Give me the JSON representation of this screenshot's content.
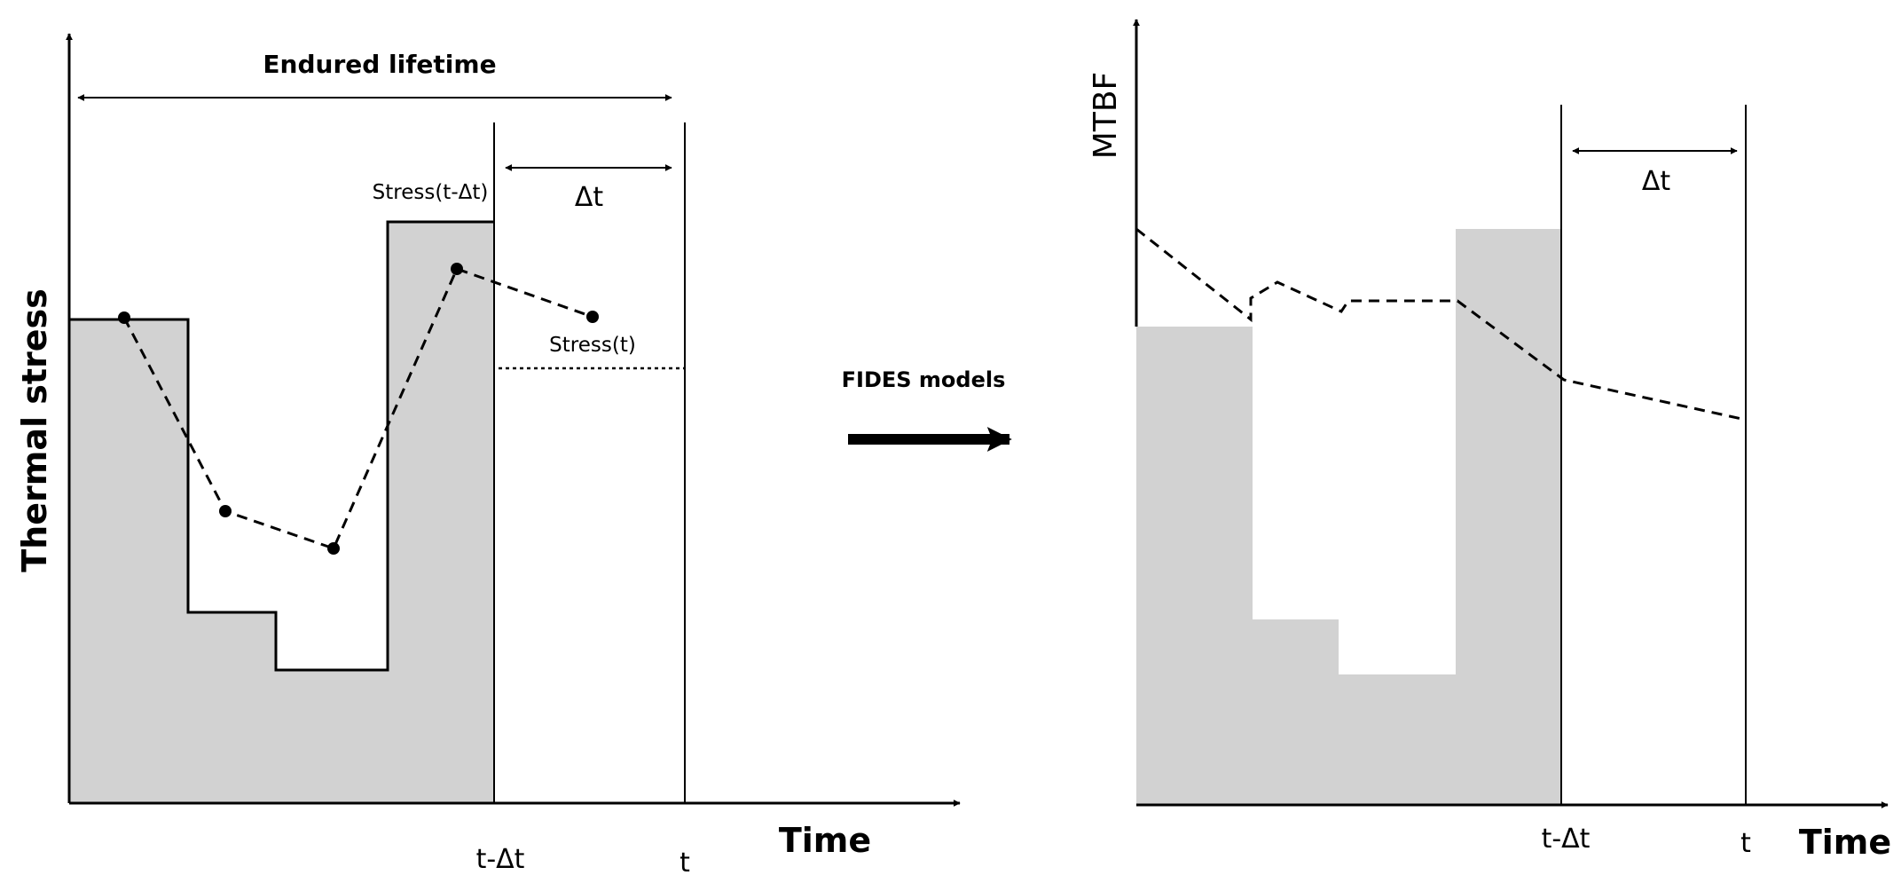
{
  "left_panel": {
    "y_axis_label": "Thermal stress",
    "x_axis_label": "Time",
    "endured_label": "Endured lifetime",
    "delta_label": "Δt",
    "stress_prev_label": "Stress(t-Δt)",
    "stress_now_label": "Stress(t)",
    "tick_prev": "t-Δt",
    "tick_now": "t"
  },
  "middle": {
    "arrow_label": "FIDES models"
  },
  "right_panel": {
    "y_axis_label": "MTBF",
    "x_axis_label": "Time",
    "delta_label": "Δt",
    "tick_prev": "t-Δt",
    "tick_now": "t"
  }
}
